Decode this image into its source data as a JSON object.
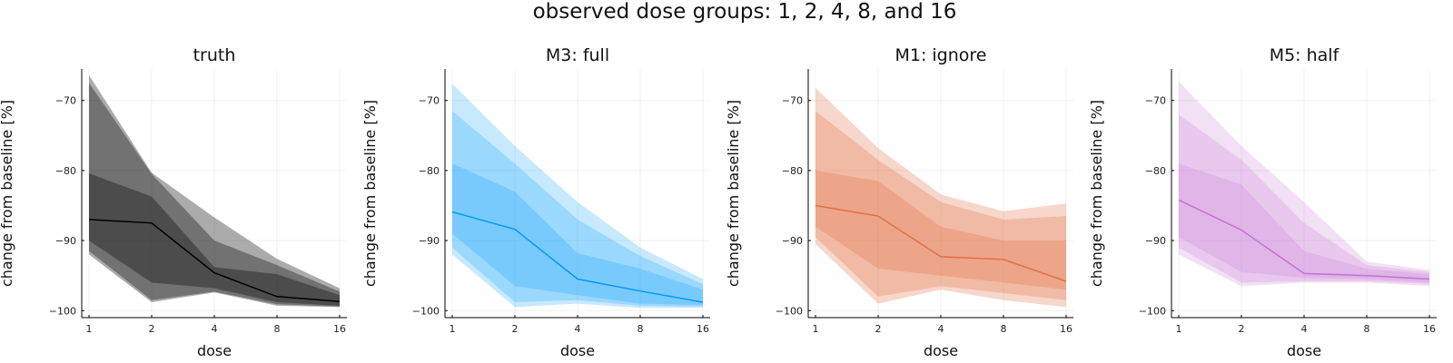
{
  "figure": {
    "title": "observed dose groups: 1, 2, 4, 8, and 16"
  },
  "chart_data": [
    {
      "type": "area",
      "title": "truth",
      "xlabel": "dose",
      "ylabel": "change from baseline [%]",
      "x": [
        1,
        2,
        4,
        8,
        16
      ],
      "x_tick_labels": [
        "1",
        "2",
        "4",
        "8",
        "16"
      ],
      "x_scale": "log2",
      "y_ticks": [
        -70,
        -80,
        -90,
        -100
      ],
      "y_tick_labels": [
        "−70",
        "−80",
        "−90",
        "−100"
      ],
      "ylim": [
        -101,
        -65.5
      ],
      "grid": true,
      "color": "#000000",
      "median": [
        -87.0,
        -87.5,
        -94.6,
        -98.0,
        -98.7
      ],
      "bands": [
        {
          "lower": [
            -92.0,
            -98.8,
            -97.4,
            -99.3,
            -99.5
          ],
          "upper": [
            -66.4,
            -80.3,
            -86.7,
            -92.6,
            -96.8
          ],
          "opacity": 0.33
        },
        {
          "lower": [
            -91.5,
            -98.5,
            -97.3,
            -99.1,
            -99.4
          ],
          "upper": [
            -67.5,
            -80.5,
            -90.0,
            -93.5,
            -97.3
          ],
          "opacity": 0.33
        },
        {
          "lower": [
            -90.0,
            -96.0,
            -96.8,
            -98.8,
            -99.3
          ],
          "upper": [
            -80.4,
            -83.7,
            -93.8,
            -94.8,
            -97.8
          ],
          "opacity": 0.33
        }
      ]
    },
    {
      "type": "area",
      "title": "M3: full",
      "xlabel": "dose",
      "ylabel": "change from baseline [%]",
      "x": [
        1,
        2,
        4,
        8,
        16
      ],
      "x_tick_labels": [
        "1",
        "2",
        "4",
        "8",
        "16"
      ],
      "x_scale": "log2",
      "y_ticks": [
        -70,
        -80,
        -90,
        -100
      ],
      "y_tick_labels": [
        "−70",
        "−80",
        "−90",
        "−100"
      ],
      "ylim": [
        -101,
        -65.5
      ],
      "grid": true,
      "color": "#009AFA",
      "median": [
        -85.9,
        -88.4,
        -95.5,
        -97.2,
        -98.8
      ],
      "bands": [
        {
          "lower": [
            -92.0,
            -99.5,
            -99.0,
            -99.6,
            -99.6
          ],
          "upper": [
            -67.6,
            -76.5,
            -84.5,
            -91.0,
            -95.5
          ],
          "opacity": 0.22
        },
        {
          "lower": [
            -91.0,
            -98.8,
            -98.5,
            -99.3,
            -99.4
          ],
          "upper": [
            -71.5,
            -79.0,
            -87.0,
            -92.2,
            -96.2
          ],
          "opacity": 0.22
        },
        {
          "lower": [
            -89.0,
            -96.5,
            -97.8,
            -99.0,
            -99.2
          ],
          "upper": [
            -79.0,
            -83.0,
            -91.8,
            -94.0,
            -97.0
          ],
          "opacity": 0.22
        }
      ]
    },
    {
      "type": "area",
      "title": "M1: ignore",
      "xlabel": "dose",
      "ylabel": "change from baseline [%]",
      "x": [
        1,
        2,
        4,
        8,
        16
      ],
      "x_tick_labels": [
        "1",
        "2",
        "4",
        "8",
        "16"
      ],
      "x_scale": "log2",
      "y_ticks": [
        -70,
        -80,
        -90,
        -100
      ],
      "y_tick_labels": [
        "−70",
        "−80",
        "−90",
        "−100"
      ],
      "ylim": [
        -101,
        -65.5
      ],
      "grid": true,
      "color": "#E26F46",
      "median": [
        -85.0,
        -86.5,
        -92.3,
        -92.7,
        -95.8
      ],
      "bands": [
        {
          "lower": [
            -90.5,
            -99.0,
            -97.0,
            -98.5,
            -99.5
          ],
          "upper": [
            -68.2,
            -76.8,
            -83.4,
            -85.8,
            -84.7
          ],
          "opacity": 0.28
        },
        {
          "lower": [
            -89.5,
            -98.0,
            -96.5,
            -97.5,
            -98.5
          ],
          "upper": [
            -71.5,
            -78.5,
            -84.5,
            -87.0,
            -86.5
          ],
          "opacity": 0.28
        },
        {
          "lower": [
            -88.0,
            -94.0,
            -95.0,
            -96.0,
            -97.0
          ],
          "upper": [
            -80.0,
            -81.5,
            -88.0,
            -90.0,
            -90.0
          ],
          "opacity": 0.28
        }
      ]
    },
    {
      "type": "area",
      "title": "M5: half",
      "xlabel": "dose",
      "ylabel": "change from baseline [%]",
      "x": [
        1,
        2,
        4,
        8,
        16
      ],
      "x_tick_labels": [
        "1",
        "2",
        "4",
        "8",
        "16"
      ],
      "x_scale": "log2",
      "y_ticks": [
        -70,
        -80,
        -90,
        -100
      ],
      "y_tick_labels": [
        "−70",
        "−80",
        "−90",
        "−100"
      ],
      "ylim": [
        -101,
        -65.5
      ],
      "grid": true,
      "color": "#C271D2",
      "median": [
        -84.2,
        -88.5,
        -94.7,
        -95.0,
        -95.5
      ],
      "bands": [
        {
          "lower": [
            -92.0,
            -96.5,
            -96.0,
            -96.0,
            -96.5
          ],
          "upper": [
            -67.3,
            -76.5,
            -84.5,
            -93.0,
            -94.2
          ],
          "opacity": 0.22
        },
        {
          "lower": [
            -91.0,
            -96.0,
            -95.8,
            -95.8,
            -96.2
          ],
          "upper": [
            -72.0,
            -78.5,
            -87.5,
            -93.5,
            -94.5
          ],
          "opacity": 0.22
        },
        {
          "lower": [
            -89.5,
            -94.5,
            -95.3,
            -95.5,
            -96.0
          ],
          "upper": [
            -79.0,
            -82.0,
            -91.5,
            -94.0,
            -94.8
          ],
          "opacity": 0.22
        }
      ]
    }
  ]
}
